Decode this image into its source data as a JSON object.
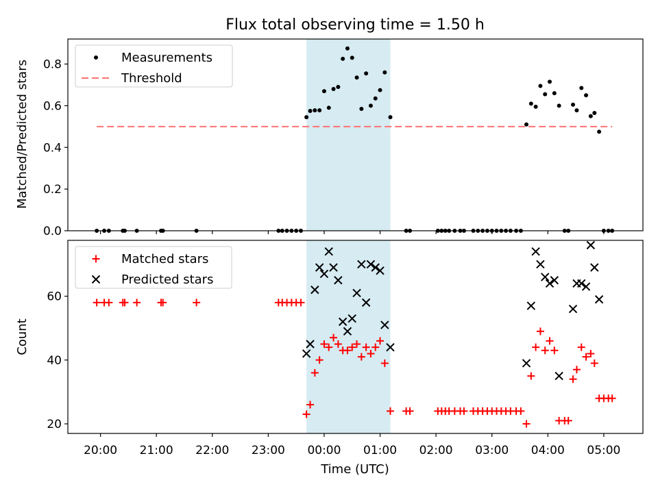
{
  "figure": {
    "title": "Flux total observing time = 1.50 h",
    "xlabel": "Time (UTC)",
    "xticks": [
      "20:00",
      "21:00",
      "22:00",
      "23:00",
      "00:00",
      "01:00",
      "02:00",
      "03:00",
      "04:00",
      "05:00"
    ],
    "highlight": {
      "start": "23:41",
      "end": "01:11",
      "color": "#add8e6"
    }
  },
  "chart_data": [
    {
      "type": "scatter",
      "ylabel": "Matched/Predicted stars",
      "ylim": [
        0,
        0.92
      ],
      "yticks": [
        "0.0",
        "0.2",
        "0.4",
        "0.6",
        "0.8"
      ],
      "ytick_values": [
        0.0,
        0.2,
        0.4,
        0.6,
        0.8
      ],
      "legend_position": "upper-left",
      "grid": false,
      "series": [
        {
          "name": "Measurements",
          "color": "#000000",
          "marker": "dot",
          "points": [
            [
              "19:56",
              0
            ],
            [
              "20:04",
              0
            ],
            [
              "20:09",
              0
            ],
            [
              "20:24",
              0
            ],
            [
              "20:26",
              0
            ],
            [
              "20:39",
              0
            ],
            [
              "21:05",
              0
            ],
            [
              "21:07",
              0
            ],
            [
              "21:43",
              0
            ],
            [
              "23:11",
              0
            ],
            [
              "23:15",
              0
            ],
            [
              "23:20",
              0
            ],
            [
              "23:25",
              0
            ],
            [
              "23:30",
              0
            ],
            [
              "23:35",
              0
            ],
            [
              "23:41",
              0.545
            ],
            [
              "23:45",
              0.575
            ],
            [
              "23:50",
              0.578
            ],
            [
              "23:55",
              0.578
            ],
            [
              "00:00",
              0.67
            ],
            [
              "00:05",
              0.59
            ],
            [
              "00:10",
              0.68
            ],
            [
              "00:15",
              0.69
            ],
            [
              "00:20",
              0.825
            ],
            [
              "00:25",
              0.875
            ],
            [
              "00:30",
              0.83
            ],
            [
              "00:35",
              0.735
            ],
            [
              "00:40",
              0.585
            ],
            [
              "00:45",
              0.755
            ],
            [
              "00:50",
              0.6
            ],
            [
              "00:55",
              0.635
            ],
            [
              "01:00",
              0.675
            ],
            [
              "01:05",
              0.76
            ],
            [
              "01:11",
              0.545
            ],
            [
              "01:28",
              0
            ],
            [
              "01:32",
              0
            ],
            [
              "02:02",
              0
            ],
            [
              "02:06",
              0
            ],
            [
              "02:10",
              0
            ],
            [
              "02:14",
              0
            ],
            [
              "02:20",
              0
            ],
            [
              "02:26",
              0
            ],
            [
              "02:30",
              0
            ],
            [
              "02:40",
              0
            ],
            [
              "02:45",
              0
            ],
            [
              "02:50",
              0
            ],
            [
              "02:55",
              0
            ],
            [
              "03:00",
              0
            ],
            [
              "03:05",
              0
            ],
            [
              "03:10",
              0
            ],
            [
              "03:15",
              0
            ],
            [
              "03:20",
              0
            ],
            [
              "03:26",
              0
            ],
            [
              "03:31",
              0
            ],
            [
              "03:37",
              0.51
            ],
            [
              "03:42",
              0.61
            ],
            [
              "03:47",
              0.595
            ],
            [
              "03:52",
              0.695
            ],
            [
              "03:57",
              0.655
            ],
            [
              "04:02",
              0.715
            ],
            [
              "04:07",
              0.66
            ],
            [
              "04:12",
              0.6
            ],
            [
              "04:18",
              0
            ],
            [
              "04:22",
              0
            ],
            [
              "04:27",
              0.605
            ],
            [
              "04:31",
              0.578
            ],
            [
              "04:36",
              0.685
            ],
            [
              "04:41",
              0.65
            ],
            [
              "04:46",
              0.55
            ],
            [
              "04:50",
              0.565
            ],
            [
              "04:55",
              0.475
            ],
            [
              "05:00",
              0
            ],
            [
              "05:05",
              0
            ],
            [
              "05:09",
              0
            ]
          ]
        },
        {
          "name": "Threshold",
          "color": "#ff7070",
          "marker": "dashed-line",
          "x": [
            "19:56",
            "05:09"
          ],
          "y": [
            0.5,
            0.5
          ]
        }
      ]
    },
    {
      "type": "scatter",
      "ylabel": "Count",
      "ylim": [
        17,
        77.5
      ],
      "yticks": [
        "20",
        "40",
        "60"
      ],
      "ytick_values": [
        20,
        40,
        60
      ],
      "legend_position": "upper-left",
      "grid": false,
      "series": [
        {
          "name": "Matched stars",
          "color": "#ff0000",
          "marker": "plus",
          "points": [
            [
              "19:56",
              58
            ],
            [
              "20:04",
              58
            ],
            [
              "20:09",
              58
            ],
            [
              "20:24",
              58
            ],
            [
              "20:26",
              58
            ],
            [
              "20:39",
              58
            ],
            [
              "21:05",
              58
            ],
            [
              "21:07",
              58
            ],
            [
              "21:43",
              58
            ],
            [
              "23:11",
              58
            ],
            [
              "23:15",
              58
            ],
            [
              "23:20",
              58
            ],
            [
              "23:25",
              58
            ],
            [
              "23:30",
              58
            ],
            [
              "23:35",
              58
            ],
            [
              "23:41",
              23
            ],
            [
              "23:45",
              26
            ],
            [
              "23:50",
              36
            ],
            [
              "23:55",
              40
            ],
            [
              "00:00",
              45
            ],
            [
              "00:05",
              44
            ],
            [
              "00:10",
              47
            ],
            [
              "00:15",
              45
            ],
            [
              "00:20",
              43
            ],
            [
              "00:25",
              43
            ],
            [
              "00:30",
              44
            ],
            [
              "00:35",
              45
            ],
            [
              "00:40",
              41
            ],
            [
              "00:45",
              44
            ],
            [
              "00:50",
              42
            ],
            [
              "00:55",
              44
            ],
            [
              "01:00",
              46
            ],
            [
              "01:05",
              39
            ],
            [
              "01:11",
              24
            ],
            [
              "01:28",
              24
            ],
            [
              "01:32",
              24
            ],
            [
              "02:02",
              24
            ],
            [
              "02:06",
              24
            ],
            [
              "02:10",
              24
            ],
            [
              "02:14",
              24
            ],
            [
              "02:20",
              24
            ],
            [
              "02:26",
              24
            ],
            [
              "02:30",
              24
            ],
            [
              "02:40",
              24
            ],
            [
              "02:45",
              24
            ],
            [
              "02:50",
              24
            ],
            [
              "02:55",
              24
            ],
            [
              "03:00",
              24
            ],
            [
              "03:05",
              24
            ],
            [
              "03:10",
              24
            ],
            [
              "03:15",
              24
            ],
            [
              "03:20",
              24
            ],
            [
              "03:26",
              24
            ],
            [
              "03:31",
              24
            ],
            [
              "03:37",
              20
            ],
            [
              "03:42",
              35
            ],
            [
              "03:47",
              44
            ],
            [
              "03:52",
              49
            ],
            [
              "03:57",
              43
            ],
            [
              "04:02",
              46
            ],
            [
              "04:07",
              43
            ],
            [
              "04:12",
              21
            ],
            [
              "04:18",
              21
            ],
            [
              "04:22",
              21
            ],
            [
              "04:27",
              34
            ],
            [
              "04:31",
              37
            ],
            [
              "04:36",
              44
            ],
            [
              "04:41",
              41
            ],
            [
              "04:46",
              42
            ],
            [
              "04:50",
              39
            ],
            [
              "04:55",
              28
            ],
            [
              "05:00",
              28
            ],
            [
              "05:05",
              28
            ],
            [
              "05:09",
              28
            ]
          ]
        },
        {
          "name": "Predicted stars",
          "color": "#000000",
          "marker": "x",
          "points": [
            [
              "23:41",
              42
            ],
            [
              "23:45",
              45
            ],
            [
              "23:50",
              62
            ],
            [
              "23:55",
              69
            ],
            [
              "00:00",
              67
            ],
            [
              "00:05",
              74
            ],
            [
              "00:10",
              69
            ],
            [
              "00:15",
              65
            ],
            [
              "00:20",
              52
            ],
            [
              "00:25",
              49
            ],
            [
              "00:30",
              53
            ],
            [
              "00:35",
              61
            ],
            [
              "00:40",
              70
            ],
            [
              "00:45",
              58
            ],
            [
              "00:50",
              70
            ],
            [
              "00:55",
              69
            ],
            [
              "01:00",
              68
            ],
            [
              "01:05",
              51
            ],
            [
              "01:11",
              44
            ],
            [
              "03:37",
              39
            ],
            [
              "03:42",
              57
            ],
            [
              "03:47",
              74
            ],
            [
              "03:52",
              70
            ],
            [
              "03:57",
              66
            ],
            [
              "04:02",
              64
            ],
            [
              "04:07",
              65
            ],
            [
              "04:12",
              35
            ],
            [
              "04:27",
              56
            ],
            [
              "04:31",
              64
            ],
            [
              "04:36",
              64
            ],
            [
              "04:41",
              63
            ],
            [
              "04:46",
              76
            ],
            [
              "04:50",
              69
            ],
            [
              "04:55",
              59
            ]
          ]
        }
      ]
    }
  ]
}
